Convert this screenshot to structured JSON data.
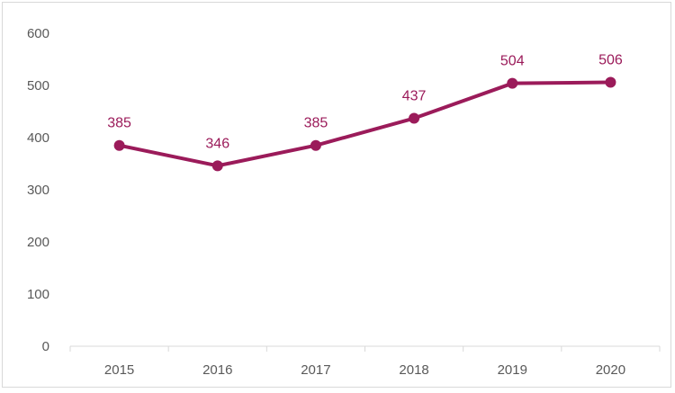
{
  "chart_data": {
    "type": "line",
    "title": "",
    "xlabel": "",
    "ylabel": "",
    "categories": [
      "2015",
      "2016",
      "2017",
      "2018",
      "2019",
      "2020"
    ],
    "series": [
      {
        "values": [
          385,
          346,
          385,
          437,
          504,
          506
        ],
        "color": "#9b1b5a"
      }
    ],
    "ylim": [
      0,
      600
    ],
    "yticks": [
      "0",
      "100",
      "200",
      "300",
      "400",
      "500",
      "600"
    ],
    "data_labels": [
      "385",
      "346",
      "385",
      "437",
      "504",
      "506"
    ],
    "grid": false,
    "legend": "none",
    "marker": "circle",
    "axis_line_color": "#d9d9d9",
    "tick_label_color": "#595959"
  }
}
